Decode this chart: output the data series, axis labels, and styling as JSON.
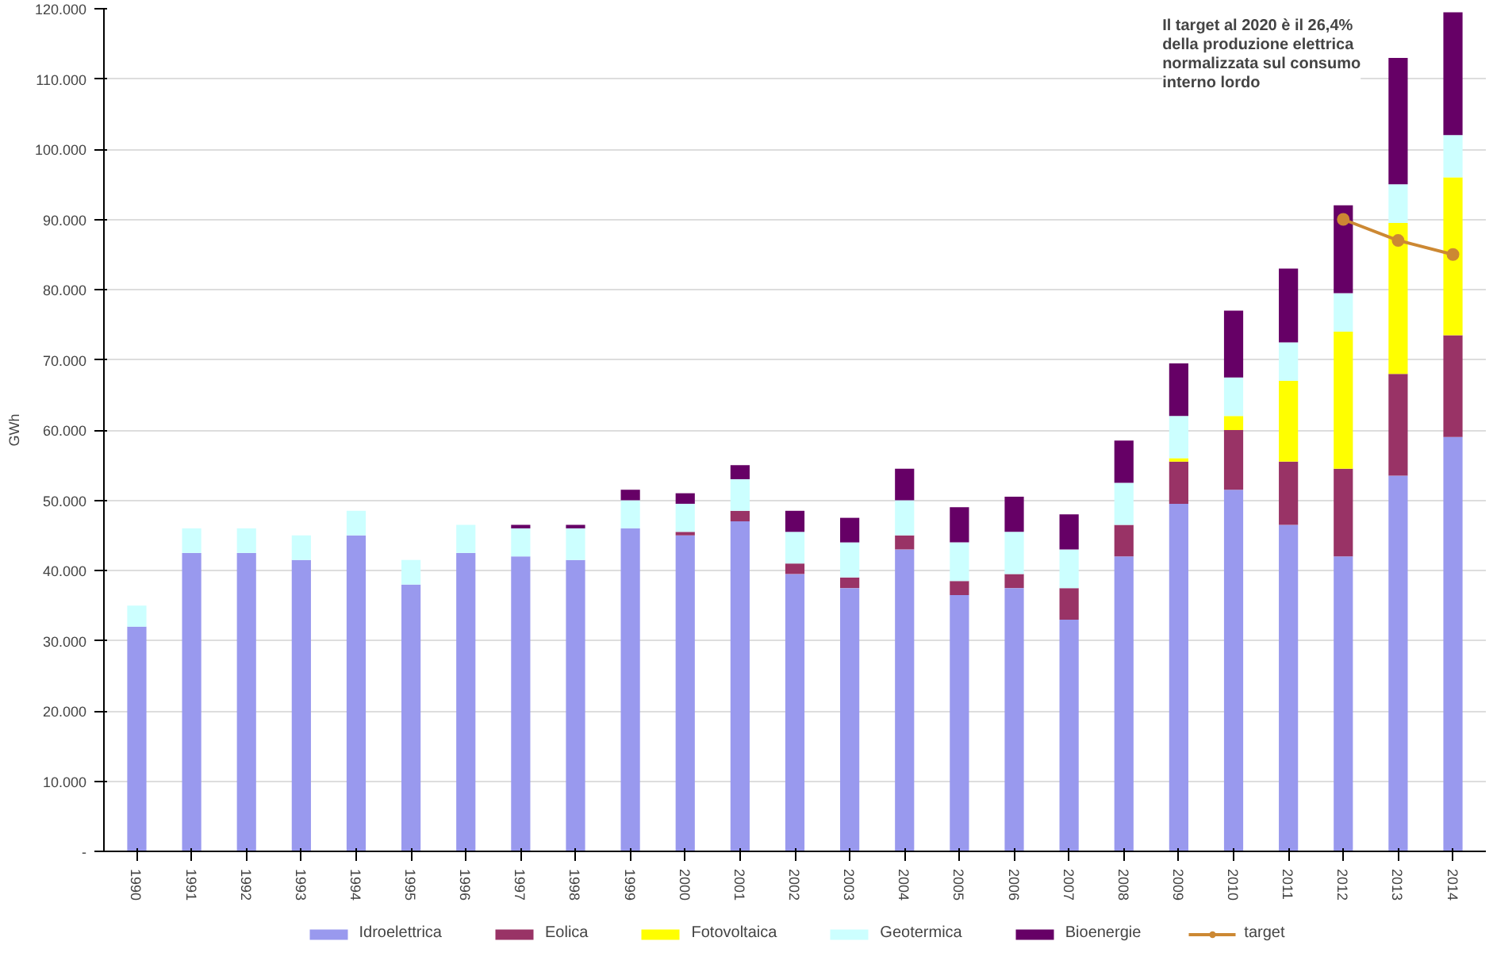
{
  "chart_data": {
    "type": "bar",
    "stacked": true,
    "ylabel": "GWh",
    "categories": [
      "1990",
      "1991",
      "1992",
      "1993",
      "1994",
      "1995",
      "1996",
      "1997",
      "1998",
      "1999",
      "2000",
      "2001",
      "2002",
      "2003",
      "2004",
      "2005",
      "2006",
      "2007",
      "2008",
      "2009",
      "2010",
      "2011",
      "2012",
      "2013",
      "2014"
    ],
    "series": [
      {
        "name": "Idroelettrica",
        "color": "#9999ee",
        "values": [
          32000,
          42500,
          42500,
          41500,
          45000,
          38000,
          42500,
          42000,
          41500,
          46000,
          45000,
          47000,
          39500,
          37500,
          43000,
          36500,
          37500,
          33000,
          42000,
          49500,
          51500,
          46500,
          42000,
          53500,
          59000
        ]
      },
      {
        "name": "Eolica",
        "color": "#993366",
        "values": [
          0,
          0,
          0,
          0,
          0,
          0,
          0,
          0,
          0,
          0,
          500,
          1500,
          1500,
          1500,
          2000,
          2000,
          2000,
          4500,
          4500,
          6000,
          8500,
          9000,
          12500,
          14500,
          14500
        ]
      },
      {
        "name": "Fotovoltaica",
        "color": "#ffff00",
        "values": [
          0,
          0,
          0,
          0,
          0,
          0,
          0,
          0,
          0,
          0,
          0,
          0,
          0,
          0,
          0,
          0,
          0,
          0,
          0,
          500,
          2000,
          11500,
          19500,
          21500,
          22500
        ]
      },
      {
        "name": "Geotermica",
        "color": "#ccffff",
        "values": [
          3000,
          3500,
          3500,
          3500,
          3500,
          3500,
          4000,
          4000,
          4500,
          4000,
          4000,
          4500,
          4500,
          5000,
          5000,
          5500,
          6000,
          5500,
          6000,
          6000,
          5500,
          5500,
          5500,
          5500,
          6000
        ]
      },
      {
        "name": "Bioenergie",
        "color": "#660066",
        "values": [
          0,
          0,
          0,
          0,
          0,
          0,
          0,
          500,
          500,
          1500,
          1500,
          2000,
          3000,
          3500,
          4500,
          5000,
          5000,
          5000,
          6000,
          7500,
          9500,
          10500,
          12500,
          18000,
          17500
        ]
      },
      {
        "name": "target",
        "type": "line",
        "marker": "circle",
        "color": "#cc8833",
        "values": [
          null,
          null,
          null,
          null,
          null,
          null,
          null,
          null,
          null,
          null,
          null,
          null,
          null,
          null,
          null,
          null,
          null,
          null,
          null,
          null,
          null,
          null,
          90000,
          87000,
          85000
        ]
      }
    ],
    "ylim": [
      0,
      120000
    ],
    "yticks": [
      {
        "value": 0,
        "label": "-"
      },
      {
        "value": 10000,
        "label": "10.000"
      },
      {
        "value": 20000,
        "label": "20.000"
      },
      {
        "value": 30000,
        "label": "30.000"
      },
      {
        "value": 40000,
        "label": "40.000"
      },
      {
        "value": 50000,
        "label": "50.000"
      },
      {
        "value": 60000,
        "label": "60.000"
      },
      {
        "value": 70000,
        "label": "70.000"
      },
      {
        "value": 80000,
        "label": "80.000"
      },
      {
        "value": 90000,
        "label": "90.000"
      },
      {
        "value": 100000,
        "label": "100.000"
      },
      {
        "value": 110000,
        "label": "110.000"
      },
      {
        "value": 120000,
        "label": "120.000"
      }
    ],
    "grid": "y",
    "legend": "bottom",
    "annotations": [
      "Il target al 2020 è il 26,4%\ndella produzione elettrica\nnormalizzata sul consumo\ninterno lordo"
    ]
  }
}
